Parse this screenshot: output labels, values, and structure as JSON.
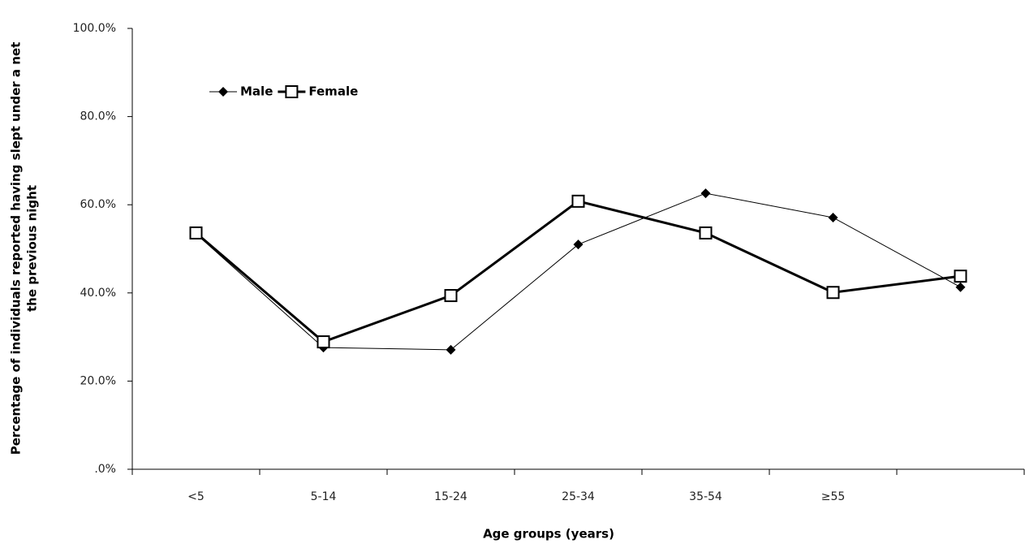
{
  "chart_data": {
    "type": "line",
    "y_label": [
      "Percentage of individuals reported having slept under a net",
      "the previous night"
    ],
    "x_label": "Age groups (years)",
    "categories": [
      "<5",
      "5-14",
      "15-24",
      "25-34",
      "35-54",
      "≥55",
      null
    ],
    "series": [
      {
        "name": "Male",
        "color": "#000000",
        "marker": "diamond",
        "values": [
          53.4,
          27.6,
          27.1,
          51.0,
          62.6,
          57.1,
          41.3
        ]
      },
      {
        "name": "Female",
        "color": "#000000",
        "marker": "square",
        "values": [
          53.6,
          28.9,
          39.4,
          60.8,
          53.6,
          40.1,
          43.8
        ]
      }
    ],
    "ylim": [
      0,
      100
    ],
    "yticks": [
      {
        "value": 0,
        "label": ".0%"
      },
      {
        "value": 20,
        "label": "20.0%"
      },
      {
        "value": 40,
        "label": "40.0%"
      },
      {
        "value": 60,
        "label": "60.0%"
      },
      {
        "value": 80,
        "label": "80.0%"
      },
      {
        "value": 100,
        "label": "100.0%"
      }
    ],
    "grid": false,
    "legend": "top-left"
  }
}
